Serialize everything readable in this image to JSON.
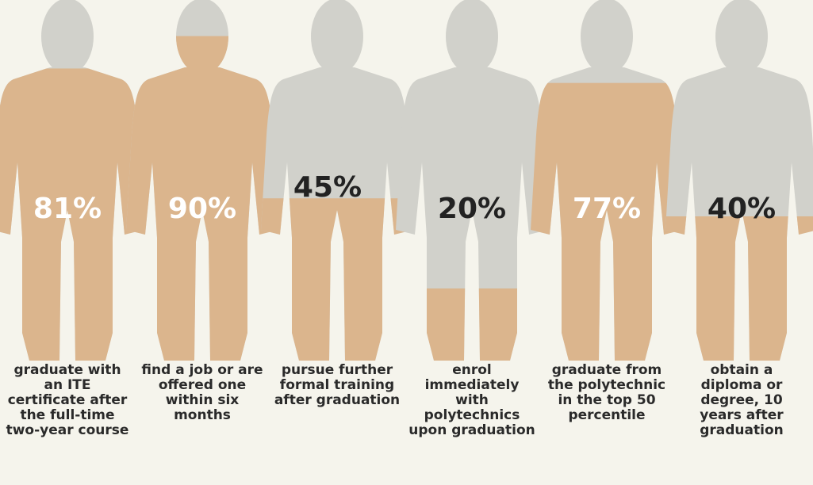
{
  "chart_data": {
    "type": "pictograph",
    "categories": [
      "graduate with an ITE certificate after the full-time two-year course",
      "find a job or are offered one within six months",
      "pursue further formal training after graduation",
      "enrol immediately with polytechnics upon graduation",
      "graduate from the polytechnic in the top 50 percentile",
      "obtain a diploma or degree, 10 years after graduation"
    ],
    "values": [
      81,
      90,
      45,
      20,
      77,
      40
    ],
    "value_labels": [
      "81%",
      "90%",
      "45%",
      "20%",
      "77%",
      "40%"
    ],
    "color": "#dbb58d",
    "background_color": "#d1d1cb"
  }
}
